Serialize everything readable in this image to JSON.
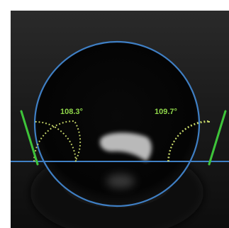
{
  "measurement": {
    "left_angle": "108.3°",
    "right_angle": "109.7°",
    "left_angle_value": 108.3,
    "right_angle_value": 109.7
  },
  "colors": {
    "fit_circle": "#3f7fc4",
    "baseline": "#3f7fc4",
    "tangent": "#3ec43a",
    "angle_arc": "#c8d86a",
    "angle_label": "#8fd64a",
    "border": "#ffffff",
    "background_dark": "#050505",
    "background_gray": "#2c2c2c"
  }
}
